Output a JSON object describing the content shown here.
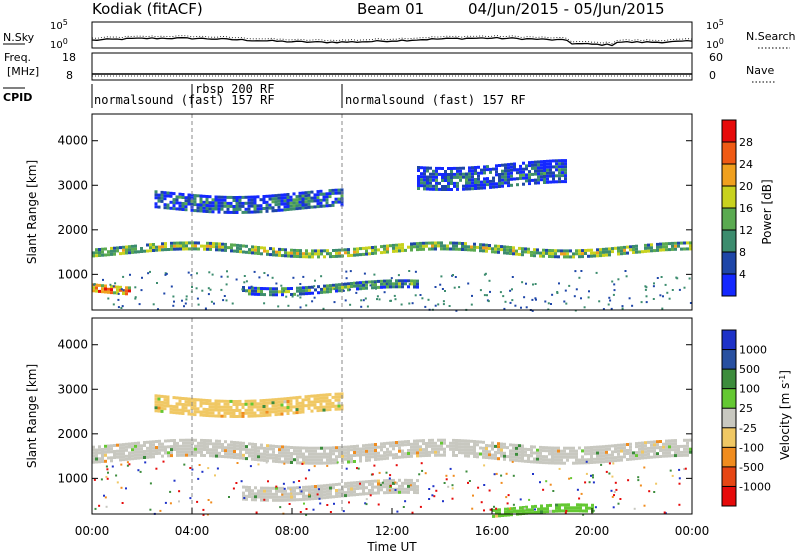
{
  "header": {
    "station": "Kodiak (fitACF)",
    "beam": "Beam 01",
    "date_range": "04/Jun/2015 - 05/Jun/2015"
  },
  "strip_panels": {
    "noise": {
      "left_label": "N.Sky",
      "right_label": "N.Search",
      "left_ticks": [
        "10^5",
        "10^0"
      ],
      "right_ticks": [
        "10^5",
        "10^0"
      ]
    },
    "freq": {
      "left_label_1": "Freq.",
      "left_label_2": "[MHz]",
      "right_label": "Nave",
      "left_ticks": [
        "18",
        "8"
      ],
      "right_ticks": [
        "60",
        "0"
      ]
    },
    "cpid": {
      "label": "CPID",
      "segments": [
        {
          "label": "normalsound (fast) 157 RF",
          "start_h": 0,
          "end_h": 4
        },
        {
          "label": "rbsp 200 RF",
          "start_h": 4,
          "end_h": 10
        },
        {
          "label": "normalsound (fast) 157 RF",
          "start_h": 10,
          "end_h": 24
        }
      ]
    }
  },
  "chart_data": [
    {
      "type": "heatmap",
      "title": "",
      "ylabel": "Slant Range [km]",
      "ylim": [
        200,
        4600
      ],
      "yticks": [
        "1000",
        "2000",
        "3000",
        "4000"
      ],
      "xlim": [
        0,
        24
      ],
      "colorbar": {
        "label": "Power [dB]",
        "range": [
          0,
          32
        ],
        "ticks": [
          "4",
          "8",
          "12",
          "16",
          "20",
          "24",
          "28"
        ],
        "colors": [
          "#1428ff",
          "#1e46a8",
          "#3c8c6e",
          "#5aaa50",
          "#c8d21e",
          "#f0a01e",
          "#f05a14",
          "#e60a0a"
        ]
      },
      "bands": [
        {
          "range_km": [
            1500,
            1650
          ],
          "t": [
            0,
            24
          ],
          "level_db": 16
        },
        {
          "range_km": [
            650,
            800
          ],
          "t": [
            6,
            13
          ],
          "level_db": 12
        },
        {
          "range_km": [
            2500,
            2850
          ],
          "t": [
            2.5,
            10
          ],
          "level_db": 8
        },
        {
          "range_km": [
            3000,
            3500
          ],
          "t": [
            13,
            19
          ],
          "level_db": 6
        },
        {
          "range_km": [
            600,
            800
          ],
          "t": [
            0,
            1.5
          ],
          "level_db": 24
        }
      ]
    },
    {
      "type": "heatmap",
      "title": "",
      "ylabel": "Slant Range [km]",
      "xlabel": "Time UT",
      "ylim": [
        200,
        4600
      ],
      "yticks": [
        "1000",
        "2000",
        "3000",
        "4000"
      ],
      "xlim": [
        0,
        24
      ],
      "xticks": [
        "00:00",
        "04:00",
        "08:00",
        "12:00",
        "16:00",
        "20:00",
        "00:00"
      ],
      "colorbar": {
        "label": "Velocity [m s^-1]",
        "ticks": [
          "1000",
          "500",
          "100",
          "25",
          "-25",
          "-100",
          "-500",
          "-1000"
        ],
        "colors": [
          "#1e32c8",
          "#2850a0",
          "#3c8c3c",
          "#64c832",
          "#c8c8c0",
          "#f0c864",
          "#f08c1e",
          "#e64614",
          "#e60a0a"
        ]
      },
      "bands": [
        {
          "range_km": [
            1400,
            1800
          ],
          "t": [
            0,
            24
          ],
          "velocity": 0
        },
        {
          "range_km": [
            600,
            900
          ],
          "t": [
            6,
            13
          ],
          "velocity": 0
        },
        {
          "range_km": [
            2500,
            2850
          ],
          "t": [
            2.5,
            10
          ],
          "velocity": -60
        },
        {
          "range_km": [
            200,
            350
          ],
          "t": [
            16,
            20
          ],
          "velocity": 60
        }
      ]
    }
  ]
}
